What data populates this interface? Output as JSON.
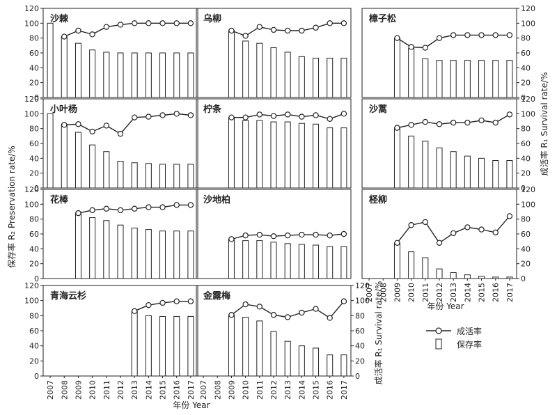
{
  "figure": {
    "left_axis_label": "保存率 R₂ Preservation rate/%",
    "right_axis_label": "成活率 R₁ Survival rate/%",
    "inner_right_axis_label": "成活率 R₁ Survival rate/%",
    "xlabel": "年份 Year",
    "legend": {
      "line_label": "成活率",
      "bar_label": "保存率",
      "placement": "right-bottom"
    }
  },
  "chart_data": [
    {
      "type": "bar-line",
      "title": "沙棘",
      "categories": [
        "2007",
        "2008",
        "2009",
        "2010",
        "2011",
        "2012",
        "2013",
        "2014",
        "2015",
        "2016",
        "2017"
      ],
      "series": [
        {
          "name": "保存率",
          "kind": "bar",
          "values": [
            100,
            82,
            73,
            64,
            61,
            60,
            60,
            60,
            60,
            60,
            60
          ]
        },
        {
          "name": "成活率",
          "kind": "line",
          "values": [
            null,
            82,
            90,
            85,
            95,
            98,
            100,
            100,
            100,
            100,
            100
          ]
        }
      ],
      "ylim": [
        0,
        120
      ]
    },
    {
      "type": "bar-line",
      "title": "乌柳",
      "categories": [
        "2007",
        "2008",
        "2009",
        "2010",
        "2011",
        "2012",
        "2013",
        "2014",
        "2015",
        "2016",
        "2017"
      ],
      "series": [
        {
          "name": "保存率",
          "kind": "bar",
          "values": [
            null,
            null,
            90,
            76,
            73,
            67,
            61,
            55,
            53,
            53,
            53
          ]
        },
        {
          "name": "成活率",
          "kind": "line",
          "values": [
            null,
            null,
            90,
            83,
            95,
            91,
            90,
            90,
            94,
            100,
            100
          ]
        }
      ],
      "ylim": [
        0,
        120
      ]
    },
    {
      "type": "bar-line",
      "title": "樟子松",
      "categories": [
        "2007",
        "2008",
        "2009",
        "2010",
        "2011",
        "2012",
        "2013",
        "2014",
        "2015",
        "2016",
        "2017"
      ],
      "series": [
        {
          "name": "保存率",
          "kind": "bar",
          "values": [
            null,
            null,
            80,
            66,
            52,
            50,
            50,
            50,
            50,
            50,
            50
          ]
        },
        {
          "name": "成活率",
          "kind": "line",
          "values": [
            null,
            null,
            80,
            68,
            67,
            80,
            84,
            84,
            84,
            84,
            84
          ]
        }
      ],
      "ylim": [
        0,
        120
      ]
    },
    {
      "type": "bar-line",
      "title": "小叶杨",
      "categories": [
        "2007",
        "2008",
        "2009",
        "2010",
        "2011",
        "2012",
        "2013",
        "2014",
        "2015",
        "2016",
        "2017"
      ],
      "series": [
        {
          "name": "保存率",
          "kind": "bar",
          "values": [
            100,
            86,
            75,
            58,
            49,
            36,
            34,
            33,
            32,
            32,
            32
          ]
        },
        {
          "name": "成活率",
          "kind": "line",
          "values": [
            null,
            85,
            86,
            76,
            84,
            73,
            95,
            96,
            98,
            100,
            98
          ]
        }
      ],
      "ylim": [
        0,
        120
      ]
    },
    {
      "type": "bar-line",
      "title": "柠条",
      "categories": [
        "2007",
        "2008",
        "2009",
        "2010",
        "2011",
        "2012",
        "2013",
        "2014",
        "2015",
        "2016",
        "2017"
      ],
      "series": [
        {
          "name": "保存率",
          "kind": "bar",
          "values": [
            null,
            null,
            95,
            91,
            91,
            89,
            89,
            87,
            86,
            81,
            81
          ]
        },
        {
          "name": "成活率",
          "kind": "line",
          "values": [
            null,
            null,
            95,
            95,
            99,
            97,
            99,
            96,
            98,
            93,
            100
          ]
        }
      ],
      "ylim": [
        0,
        120
      ]
    },
    {
      "type": "bar-line",
      "title": "沙蒿",
      "categories": [
        "2007",
        "2008",
        "2009",
        "2010",
        "2011",
        "2012",
        "2013",
        "2014",
        "2015",
        "2016",
        "2017"
      ],
      "series": [
        {
          "name": "保存率",
          "kind": "bar",
          "values": [
            null,
            null,
            81,
            70,
            63,
            54,
            49,
            43,
            40,
            37,
            37
          ]
        },
        {
          "name": "成活率",
          "kind": "line",
          "values": [
            null,
            null,
            81,
            85,
            89,
            86,
            88,
            88,
            91,
            88,
            99
          ]
        }
      ],
      "ylim": [
        0,
        120
      ]
    },
    {
      "type": "bar-line",
      "title": "花棒",
      "categories": [
        "2007",
        "2008",
        "2009",
        "2010",
        "2011",
        "2012",
        "2013",
        "2014",
        "2015",
        "2016",
        "2017"
      ],
      "series": [
        {
          "name": "保存率",
          "kind": "bar",
          "values": [
            null,
            null,
            88,
            82,
            78,
            72,
            68,
            66,
            64,
            64,
            64
          ]
        },
        {
          "name": "成活率",
          "kind": "line",
          "values": [
            null,
            null,
            88,
            92,
            94,
            92,
            94,
            96,
            96,
            99,
            99
          ]
        }
      ],
      "ylim": [
        0,
        120
      ]
    },
    {
      "type": "bar-line",
      "title": "沙地柏",
      "categories": [
        "2007",
        "2008",
        "2009",
        "2010",
        "2011",
        "2012",
        "2013",
        "2014",
        "2015",
        "2016",
        "2017"
      ],
      "series": [
        {
          "name": "保存率",
          "kind": "bar",
          "values": [
            null,
            null,
            53,
            51,
            51,
            49,
            47,
            46,
            45,
            43,
            43
          ]
        },
        {
          "name": "成活率",
          "kind": "line",
          "values": [
            null,
            null,
            53,
            58,
            59,
            57,
            58,
            59,
            59,
            58,
            60
          ]
        }
      ],
      "ylim": [
        0,
        120
      ]
    },
    {
      "type": "bar-line",
      "title": "柽柳",
      "categories": [
        "2007",
        "2008",
        "2009",
        "2010",
        "2011",
        "2012",
        "2013",
        "2014",
        "2015",
        "2016",
        "2017"
      ],
      "series": [
        {
          "name": "保存率",
          "kind": "bar",
          "values": [
            null,
            null,
            48,
            36,
            28,
            13,
            8,
            5,
            3,
            2,
            2
          ]
        },
        {
          "name": "成活率",
          "kind": "line",
          "values": [
            null,
            null,
            48,
            72,
            76,
            48,
            61,
            69,
            66,
            62,
            84
          ]
        }
      ],
      "ylim": [
        0,
        120
      ]
    },
    {
      "type": "bar-line",
      "title": "青海云杉",
      "categories": [
        "2007",
        "2008",
        "2009",
        "2010",
        "2011",
        "2012",
        "2013",
        "2014",
        "2015",
        "2016",
        "2017"
      ],
      "series": [
        {
          "name": "保存率",
          "kind": "bar",
          "values": [
            null,
            null,
            null,
            null,
            null,
            null,
            86,
            80,
            79,
            79,
            79
          ]
        },
        {
          "name": "成活率",
          "kind": "line",
          "values": [
            null,
            null,
            null,
            null,
            null,
            null,
            86,
            94,
            97,
            99,
            99
          ]
        }
      ],
      "ylim": [
        0,
        120
      ]
    },
    {
      "type": "bar-line",
      "title": "金露梅",
      "categories": [
        "2007",
        "2008",
        "2009",
        "2010",
        "2011",
        "2012",
        "2013",
        "2014",
        "2015",
        "2016",
        "2017"
      ],
      "series": [
        {
          "name": "保存率",
          "kind": "bar",
          "values": [
            null,
            null,
            81,
            78,
            73,
            59,
            46,
            40,
            37,
            28,
            28
          ]
        },
        {
          "name": "成活率",
          "kind": "line",
          "values": [
            null,
            null,
            81,
            95,
            92,
            81,
            78,
            84,
            89,
            77,
            99
          ]
        }
      ],
      "ylim": [
        0,
        120
      ]
    }
  ]
}
